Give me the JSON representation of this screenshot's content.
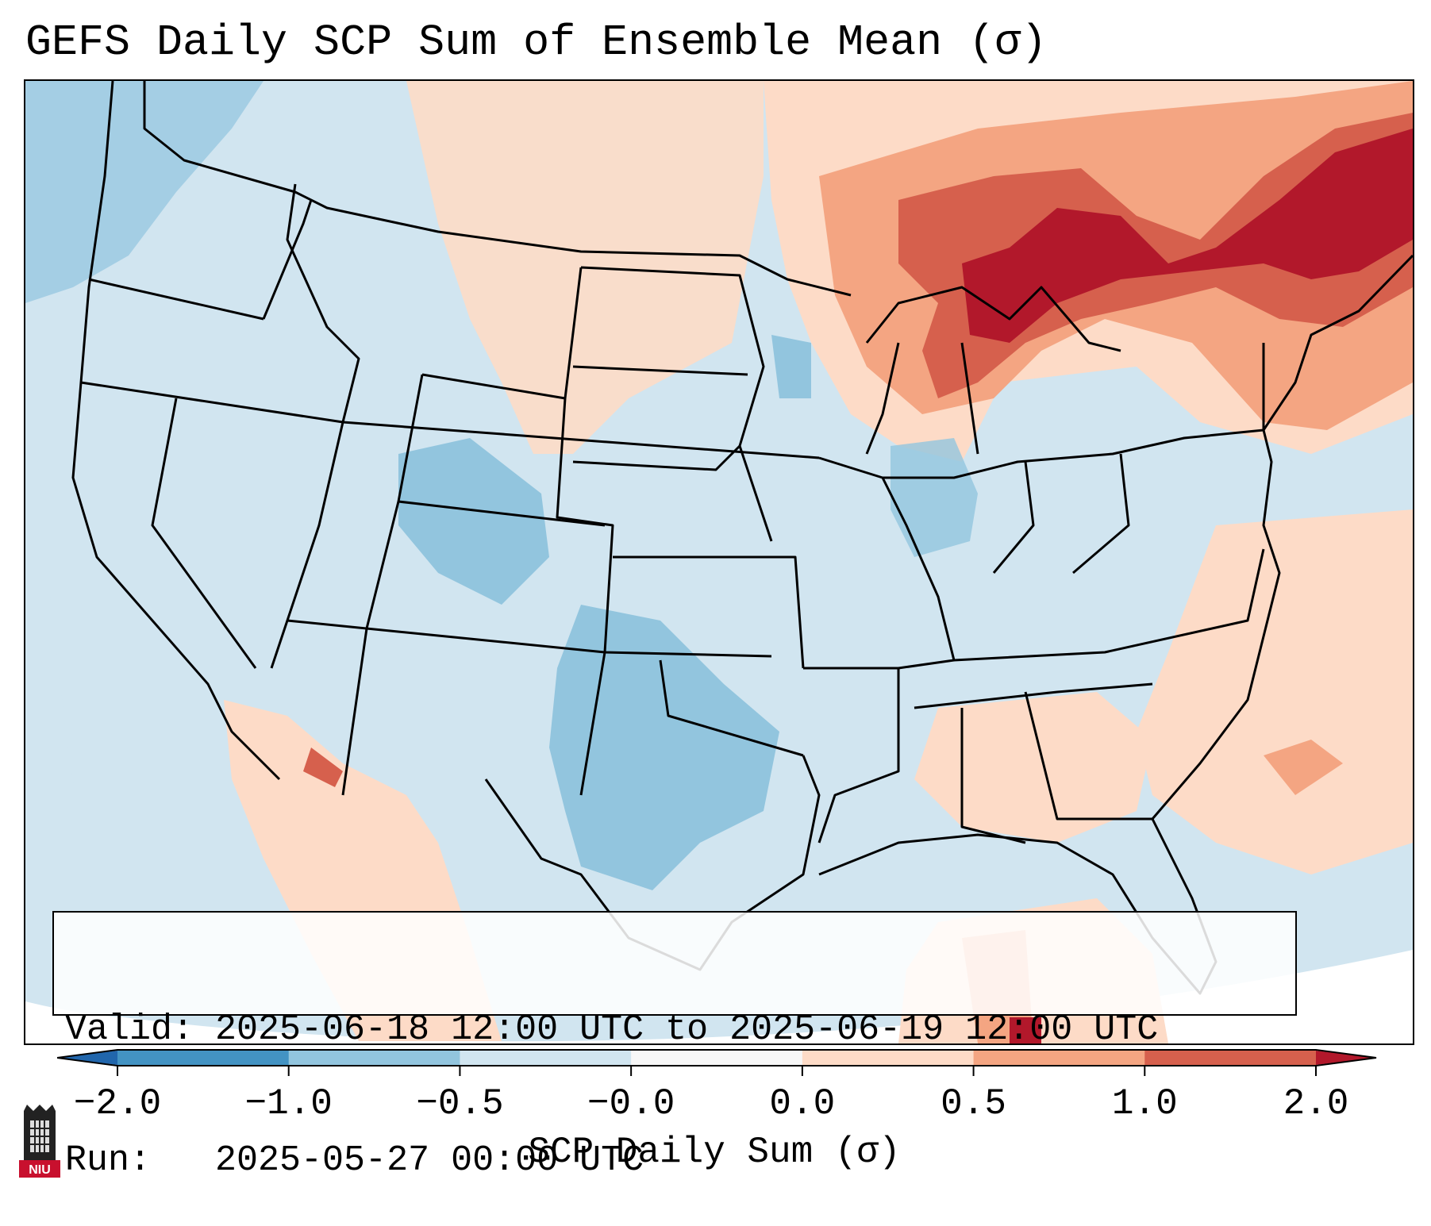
{
  "title": "GEFS Daily SCP Sum of Ensemble Mean (σ)",
  "info": {
    "valid": "Valid: 2025-06-18 12:00 UTC to 2025-06-19 12:00 UTC",
    "run": "Run:   2025-05-27 00:00 UTC"
  },
  "colorbar": {
    "label": "SCP Daily Sum (σ)",
    "ticks": [
      "−2.0",
      "−1.0",
      "−0.5",
      "−0.0",
      "0.0",
      "0.5",
      "1.0",
      "2.0"
    ],
    "bins": [
      {
        "from": -2.0,
        "to": -1.0,
        "color": "#4393c3"
      },
      {
        "from": -1.0,
        "to": -0.5,
        "color": "#92c5de"
      },
      {
        "from": -0.5,
        "to": -0.0,
        "color": "#d1e5f0"
      },
      {
        "from": -0.0,
        "to": 0.0,
        "color": "#f7f7f7"
      },
      {
        "from": 0.0,
        "to": 0.5,
        "color": "#fddbc7"
      },
      {
        "from": 0.5,
        "to": 1.0,
        "color": "#f4a582"
      },
      {
        "from": 1.0,
        "to": 2.0,
        "color": "#d6604d"
      }
    ],
    "under_color": "#2166ac",
    "over_color": "#b2182b"
  },
  "map": {
    "region": "Contiguous United States",
    "anomaly_areas": [
      {
        "name": "Great Lakes / Upper Midwest",
        "category": "above 2.0",
        "color": "#b2182b"
      },
      {
        "name": "Northern New England",
        "category": "above 2.0",
        "color": "#b2182b"
      },
      {
        "name": "Southern Plains / Texas",
        "category": "-1.0 to -0.5",
        "color": "#92c5de"
      },
      {
        "name": "Colorado / Utah",
        "category": "-1.0 to -0.5",
        "color": "#92c5de"
      },
      {
        "name": "Northern Plains",
        "category": "0.0 to 0.5",
        "color": "#fddbc7"
      },
      {
        "name": "Desert Southwest",
        "category": "0.0 to 0.5",
        "color": "#fddbc7"
      },
      {
        "name": "Western Atlantic",
        "category": "0.0 to 0.5",
        "color": "#fddbc7"
      }
    ]
  },
  "logo": {
    "text": "NIU",
    "color": "#c8102e"
  }
}
